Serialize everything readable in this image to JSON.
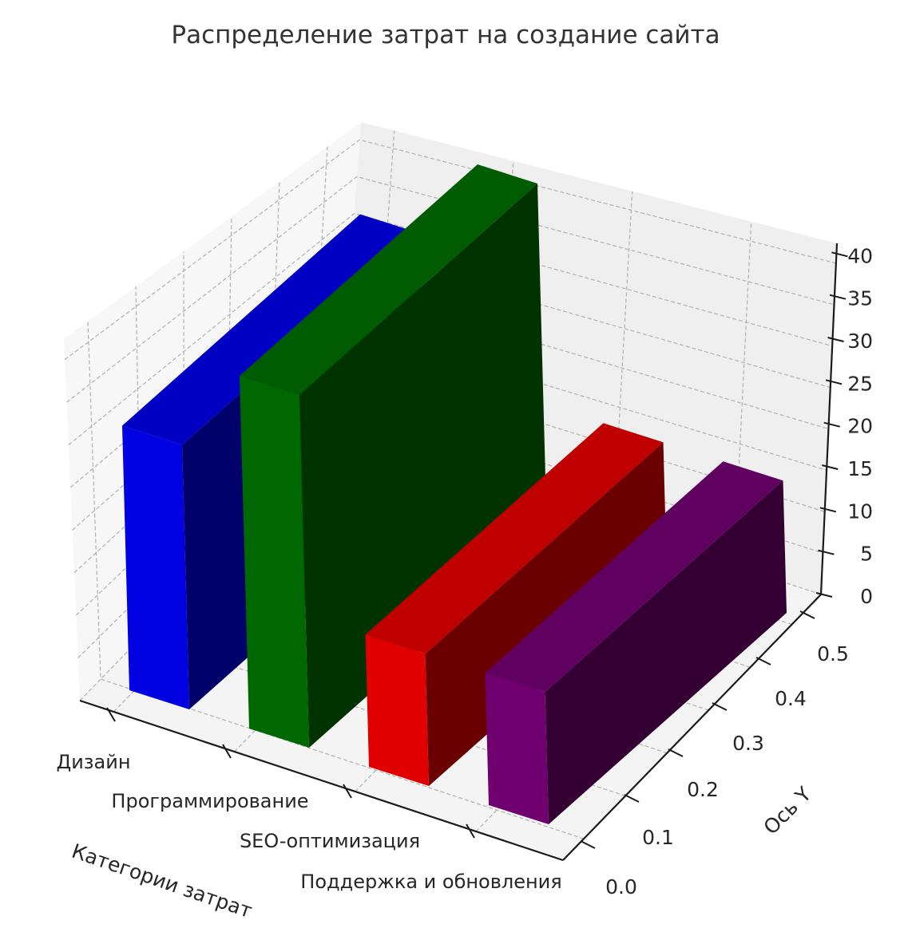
{
  "chart_data": {
    "type": "bar3d",
    "title": "Распределение затрат на создание сайта",
    "xlabel": "Категории затрат",
    "ylabel": "Ось Y",
    "categories": [
      "Дизайн",
      "Программирование",
      "SEO-оптимизация",
      "Поддержка и обновления"
    ],
    "values": [
      30,
      40,
      15,
      15
    ],
    "colors": [
      "#0000ff",
      "#008000",
      "#ff0000",
      "#800080"
    ],
    "zlim": [
      0,
      40
    ],
    "ylim": [
      0,
      0.5
    ],
    "z_ticks": [
      "0",
      "5",
      "10",
      "15",
      "20",
      "25",
      "30",
      "35",
      "40"
    ],
    "y_ticks": [
      "0.0",
      "0.1",
      "0.2",
      "0.3",
      "0.4",
      "0.5"
    ],
    "grid": true
  }
}
